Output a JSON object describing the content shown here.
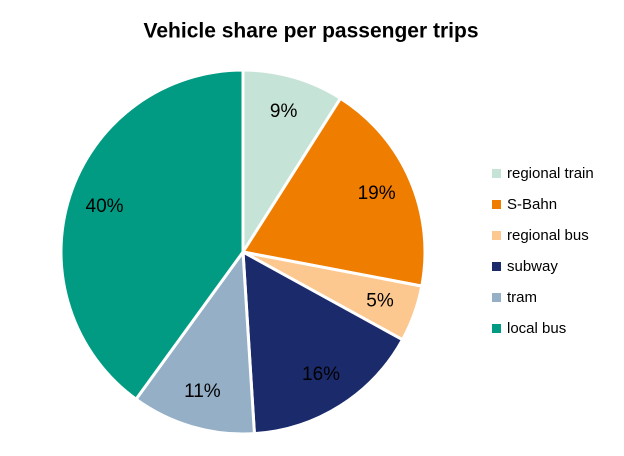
{
  "chart_data": {
    "type": "pie",
    "title": "Vehicle share per passenger trips",
    "categories": [
      "regional train",
      "S-Bahn",
      "regional bus",
      "subway",
      "tram",
      "local bus"
    ],
    "values": [
      9,
      19,
      5,
      16,
      11,
      40
    ],
    "value_labels": [
      "9%",
      "19%",
      "5%",
      "16%",
      "11%",
      "40%"
    ],
    "colors": [
      "#c5e3d6",
      "#ef7d00",
      "#fcc890",
      "#1b2a6b",
      "#94afc6",
      "#009b82"
    ],
    "legend": "right"
  }
}
